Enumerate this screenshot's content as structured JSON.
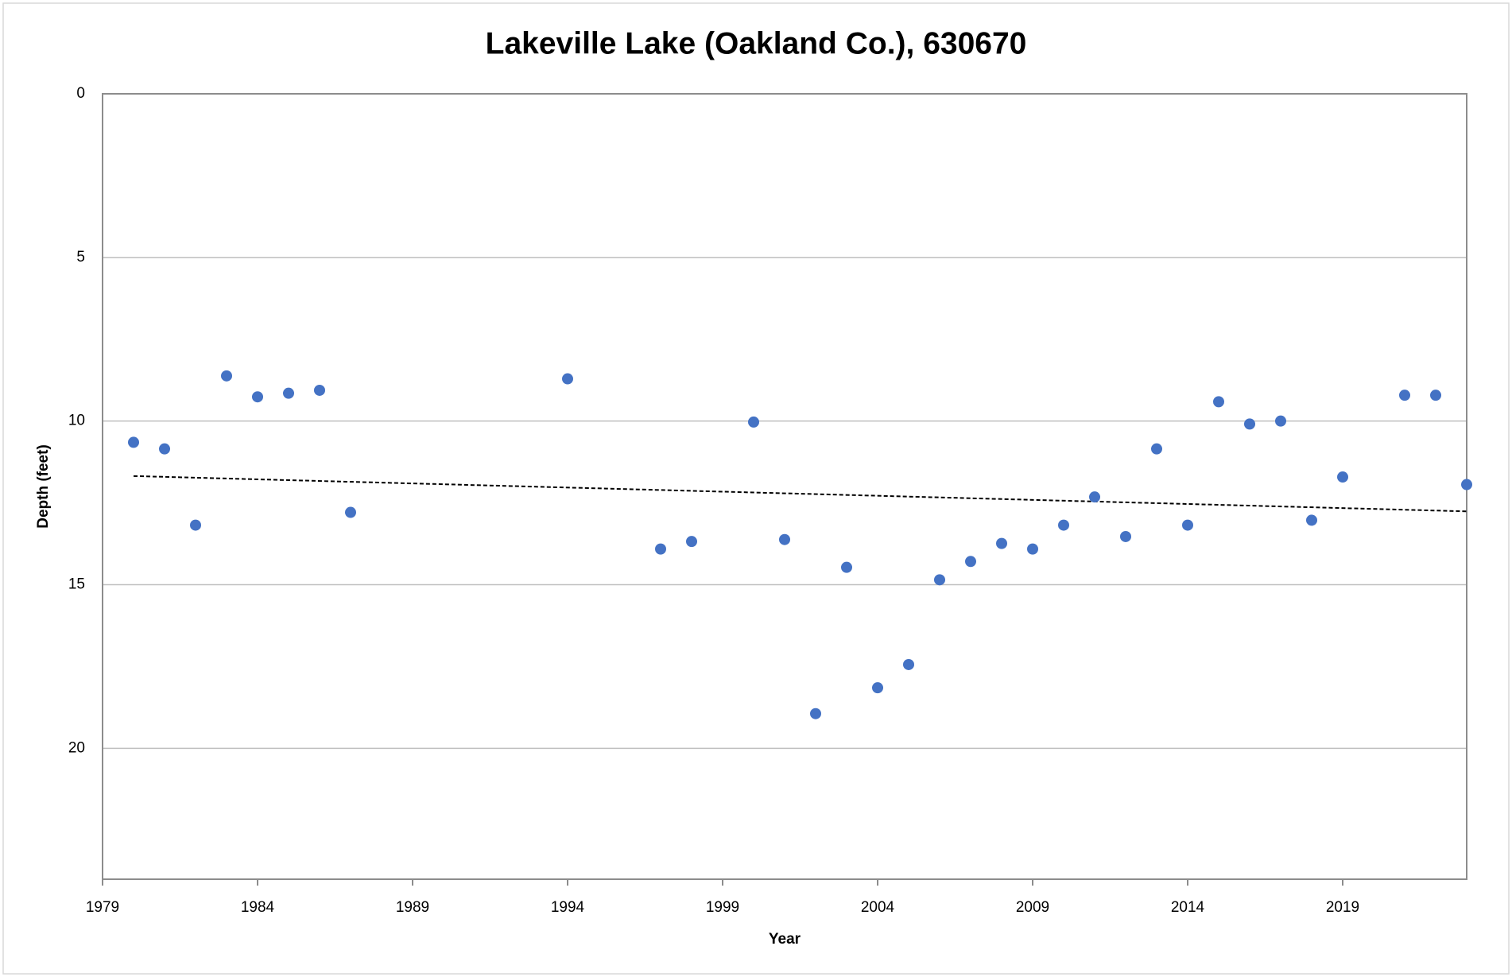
{
  "chart_data": {
    "type": "scatter",
    "title": "Lakeville Lake (Oakland Co.), 630670",
    "x_label": "Year",
    "y_label": "Depth (feet)",
    "x": [
      1980,
      1981,
      1982,
      1983,
      1984,
      1985,
      1986,
      1987,
      1994,
      1997,
      1998,
      2000,
      2001,
      2002,
      2003,
      2004,
      2005,
      2006,
      2007,
      2008,
      2009,
      2010,
      2011,
      2012,
      2013,
      2014,
      2015,
      2016,
      2017,
      2018,
      2019,
      2021,
      2022,
      2023
    ],
    "values": [
      10.65,
      10.85,
      13.18,
      8.62,
      9.26,
      9.15,
      9.06,
      12.79,
      8.71,
      13.91,
      13.68,
      10.03,
      13.62,
      18.94,
      14.47,
      18.15,
      17.44,
      14.85,
      14.29,
      13.74,
      13.91,
      13.18,
      12.32,
      13.53,
      10.85,
      13.18,
      9.41,
      10.09,
      10.0,
      13.03,
      11.71,
      9.21,
      9.21,
      11.94
    ],
    "color": "#4472c4",
    "trendline": {
      "x": [
        1980,
        2023
      ],
      "values": [
        11.68,
        12.76
      ],
      "color": "#000000"
    },
    "xlim": [
      1979,
      2023
    ],
    "xticks": [
      1979,
      1984,
      1989,
      1994,
      1999,
      2004,
      2009,
      2014,
      2019
    ],
    "ylim": [
      0,
      24
    ],
    "yticks": [
      0,
      5,
      10,
      15,
      20
    ],
    "y_inverted": true,
    "grid": true
  }
}
